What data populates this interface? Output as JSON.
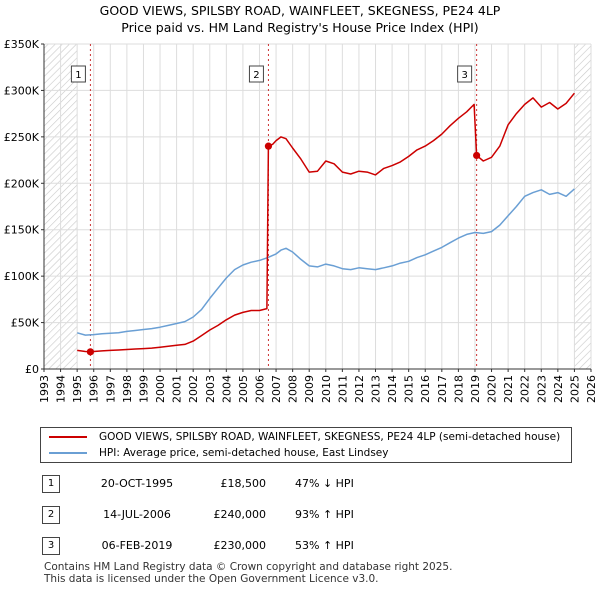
{
  "title_line1": "GOOD VIEWS, SPILSBY ROAD, WAINFLEET, SKEGNESS, PE24 4LP",
  "title_line2": "Price paid vs. HM Land Registry's House Price Index (HPI)",
  "colors": {
    "property": "#cc0000",
    "hpi": "#6a9fd4",
    "marker_line": "#cc3333",
    "hatch": "#bbbbbb",
    "grid": "#dddddd"
  },
  "legend": {
    "property_label": "GOOD VIEWS, SPILSBY ROAD, WAINFLEET, SKEGNESS, PE24 4LP (semi-detached house)",
    "hpi_label": "HPI: Average price, semi-detached house, East Lindsey"
  },
  "sales": [
    {
      "num": "1",
      "date": "20-OCT-1995",
      "price": "£18,500",
      "hpi": "47% ↓ HPI"
    },
    {
      "num": "2",
      "date": "14-JUL-2006",
      "price": "£240,000",
      "hpi": "93% ↑ HPI"
    },
    {
      "num": "3",
      "date": "06-FEB-2019",
      "price": "£230,000",
      "hpi": "53% ↑ HPI"
    }
  ],
  "footer_line1": "Contains HM Land Registry data © Crown copyright and database right 2025.",
  "footer_line2": "This data is licensed under the Open Government Licence v3.0.",
  "chart_data": {
    "type": "line",
    "title": "GOOD VIEWS, SPILSBY ROAD, WAINFLEET, SKEGNESS, PE24 4LP",
    "subtitle": "Price paid vs. HM Land Registry's House Price Index (HPI)",
    "xlabel": "",
    "ylabel": "",
    "xlim": [
      1993,
      2026
    ],
    "ylim": [
      0,
      350000
    ],
    "x_ticks": [
      1993,
      1994,
      1995,
      1996,
      1997,
      1998,
      1999,
      2000,
      2001,
      2002,
      2003,
      2004,
      2005,
      2006,
      2007,
      2008,
      2009,
      2010,
      2011,
      2012,
      2013,
      2014,
      2015,
      2016,
      2017,
      2018,
      2019,
      2020,
      2021,
      2022,
      2023,
      2024,
      2025,
      2026
    ],
    "y_ticks": [
      0,
      50000,
      100000,
      150000,
      200000,
      250000,
      300000,
      350000
    ],
    "y_tick_labels": [
      "£0",
      "£50K",
      "£100K",
      "£150K",
      "£200K",
      "£250K",
      "£300K",
      "£350K"
    ],
    "hatched_ranges": [
      [
        1993,
        1995.0
      ],
      [
        2025.0,
        2026
      ]
    ],
    "grid": true,
    "legend_position": "below",
    "sale_markers": [
      {
        "label": "1",
        "x": 1995.8,
        "y": 18500
      },
      {
        "label": "2",
        "x": 2006.54,
        "y": 240000
      },
      {
        "label": "3",
        "x": 2019.1,
        "y": 230000
      }
    ],
    "series": [
      {
        "name": "GOOD VIEWS, SPILSBY ROAD, WAINFLEET, SKEGNESS, PE24 4LP (semi-detached house)",
        "x": [
          1995.0,
          1995.5,
          1995.8,
          1996.5,
          1997,
          1997.5,
          1998,
          1998.5,
          1999,
          1999.5,
          2000,
          2000.5,
          2001,
          2001.5,
          2002,
          2002.5,
          2003,
          2003.5,
          2004,
          2004.5,
          2005,
          2005.5,
          2006,
          2006.45,
          2006.54,
          2006.8,
          2007,
          2007.3,
          2007.6,
          2008,
          2008.5,
          2009,
          2009.5,
          2010,
          2010.5,
          2011,
          2011.5,
          2012,
          2012.5,
          2013,
          2013.5,
          2014,
          2014.5,
          2015,
          2015.5,
          2016,
          2016.5,
          2017,
          2017.5,
          2018,
          2018.5,
          2018.95,
          2019.1,
          2019.5,
          2020,
          2020.5,
          2021,
          2021.5,
          2022,
          2022.5,
          2023,
          2023.5,
          2024,
          2024.5,
          2025.0
        ],
        "y": [
          20000,
          18800,
          18500,
          19500,
          20000,
          20500,
          21000,
          21500,
          22000,
          22500,
          23500,
          24500,
          25500,
          26500,
          30000,
          36000,
          42000,
          47000,
          53000,
          58000,
          61000,
          63000,
          63000,
          65000,
          240000,
          242000,
          246000,
          250000,
          248000,
          238000,
          226000,
          212000,
          213000,
          224000,
          221000,
          212000,
          210000,
          213000,
          212000,
          209000,
          216000,
          219000,
          223000,
          229000,
          236000,
          240000,
          246000,
          253000,
          262000,
          270000,
          277000,
          285000,
          230000,
          224000,
          228000,
          240000,
          263000,
          275000,
          285000,
          292000,
          282000,
          287000,
          280000,
          286000,
          297000
        ]
      },
      {
        "name": "HPI: Average price, semi-detached house, East Lindsey",
        "x": [
          1995.0,
          1995.5,
          1996,
          1996.5,
          1997,
          1997.5,
          1998,
          1998.5,
          1999,
          1999.5,
          2000,
          2000.5,
          2001,
          2001.5,
          2002,
          2002.5,
          2003,
          2003.5,
          2004,
          2004.5,
          2005,
          2005.5,
          2006,
          2006.5,
          2007,
          2007.3,
          2007.6,
          2008,
          2008.5,
          2009,
          2009.5,
          2010,
          2010.5,
          2011,
          2011.5,
          2012,
          2012.5,
          2013,
          2013.5,
          2014,
          2014.5,
          2015,
          2015.5,
          2016,
          2016.5,
          2017,
          2017.5,
          2018,
          2018.5,
          2019,
          2019.5,
          2020,
          2020.5,
          2021,
          2021.5,
          2022,
          2022.5,
          2023,
          2023.5,
          2024,
          2024.5,
          2025.0
        ],
        "y": [
          39000,
          36500,
          37000,
          38000,
          38500,
          39000,
          40500,
          41500,
          42500,
          43500,
          45000,
          47000,
          49000,
          51000,
          56000,
          64000,
          76000,
          87000,
          98000,
          107000,
          112000,
          115000,
          117000,
          120000,
          124000,
          128000,
          130000,
          126000,
          118000,
          111000,
          110000,
          113000,
          111000,
          108000,
          107000,
          109000,
          108000,
          107000,
          109000,
          111000,
          114000,
          116000,
          120000,
          123000,
          127000,
          131000,
          136000,
          141000,
          145000,
          147000,
          146000,
          148000,
          155000,
          165000,
          175000,
          186000,
          190000,
          193000,
          188000,
          190000,
          186000,
          194000
        ]
      }
    ]
  }
}
